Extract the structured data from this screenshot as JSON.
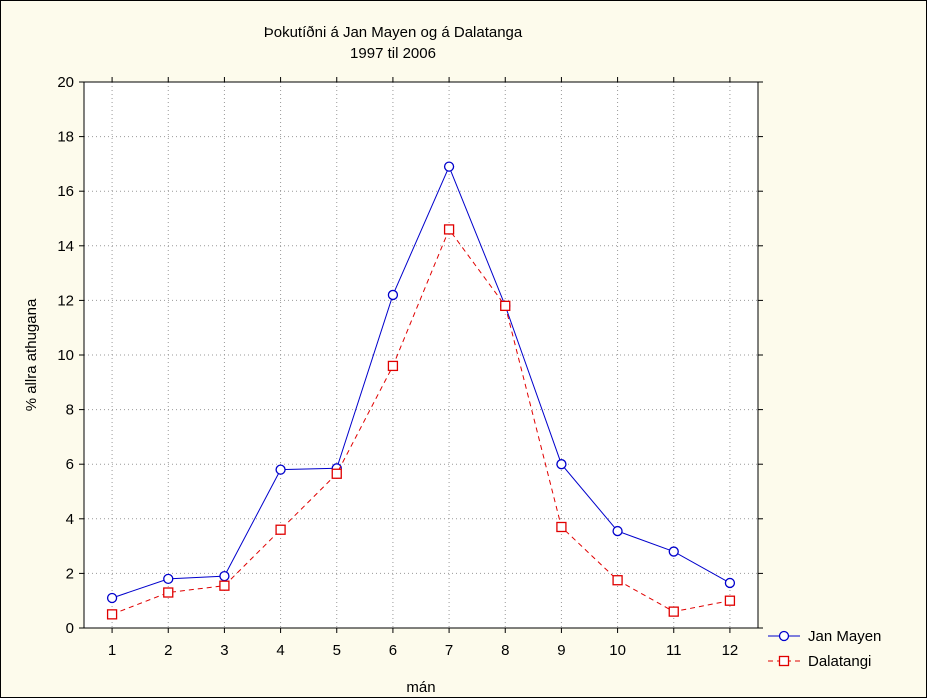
{
  "chart_data": {
    "type": "line",
    "title": "Þokutíðni á Jan Mayen og á Dalatanga",
    "subtitle": "1997 til 2006",
    "xlabel": "mán",
    "ylabel": "% allra athugana",
    "x": [
      1,
      2,
      3,
      4,
      5,
      6,
      7,
      8,
      9,
      10,
      11,
      12
    ],
    "xlim": [
      0.5,
      12.5
    ],
    "ylim": [
      0,
      20
    ],
    "yticks": [
      0,
      2,
      4,
      6,
      8,
      10,
      12,
      14,
      16,
      18,
      20
    ],
    "grid": true,
    "legend_position": "bottom-right, outside plot",
    "series": [
      {
        "name": "Jan Mayen",
        "color": "#0000cc",
        "marker": "circle",
        "line": "solid",
        "values": [
          1.1,
          1.8,
          1.9,
          5.8,
          5.85,
          12.2,
          16.9,
          11.8,
          6.0,
          3.55,
          2.8,
          1.65
        ]
      },
      {
        "name": "Dalatangi",
        "color": "#e00000",
        "marker": "square",
        "line": "dashed",
        "values": [
          0.5,
          1.3,
          1.55,
          3.6,
          5.65,
          9.6,
          14.6,
          11.8,
          3.7,
          1.75,
          0.6,
          1.0
        ]
      }
    ]
  },
  "colors": {
    "background": "#fdfbec",
    "plot_background": "#ffffff",
    "grid": "#999999"
  }
}
